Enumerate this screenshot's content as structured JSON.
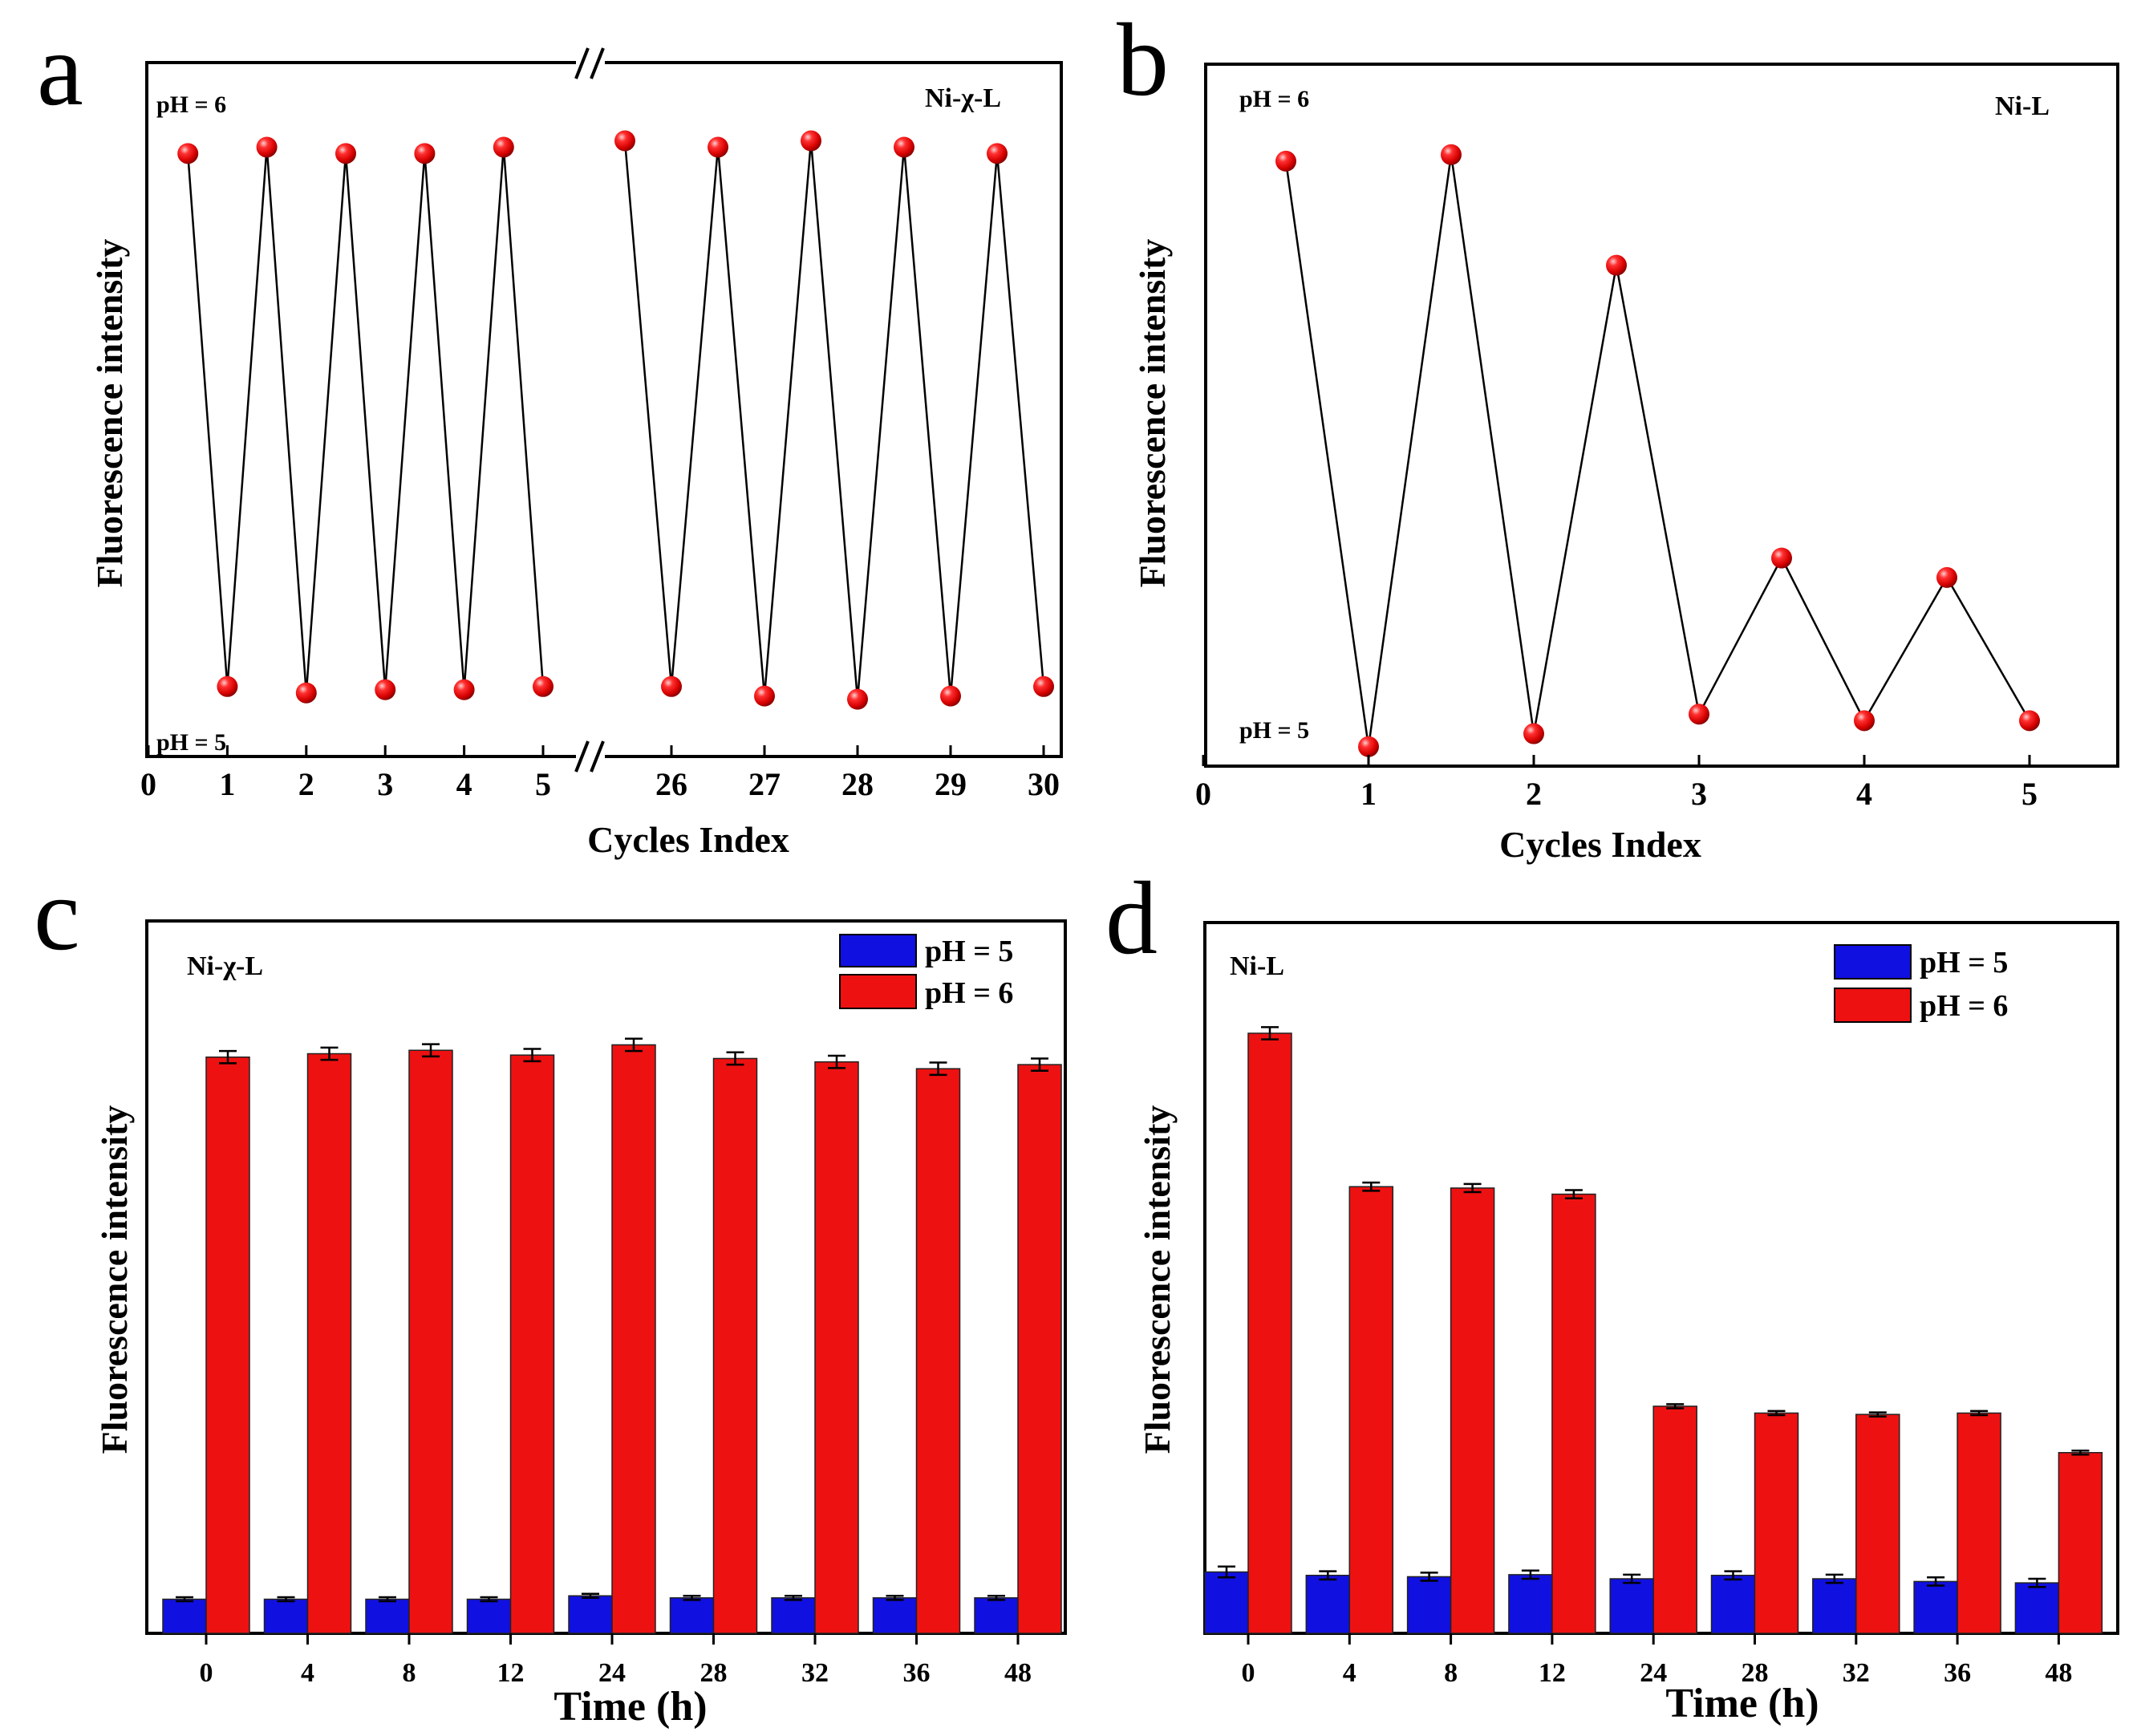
{
  "chart_data": [
    {
      "id": "a",
      "panel": "a",
      "type": "scatter",
      "title": "Ni-χ-L",
      "xlabel": "Cycles Index",
      "ylabel": "Fluorescence intensity",
      "top_label": "pH = 6",
      "bottom_label": "pH = 5",
      "axis_break": "//",
      "xlim": [
        0,
        30
      ],
      "ylim": [
        0,
        100
      ],
      "xticks": [
        {
          "value": 0,
          "label": "0"
        },
        {
          "value": 1,
          "label": "1"
        },
        {
          "value": 2,
          "label": "2"
        },
        {
          "value": 3,
          "label": "3"
        },
        {
          "value": 4,
          "label": "4"
        },
        {
          "value": 5,
          "label": "5"
        },
        {
          "value": 26,
          "label": "26"
        },
        {
          "value": 27,
          "label": "27"
        },
        {
          "value": 28,
          "label": "28"
        },
        {
          "value": 29,
          "label": "29"
        },
        {
          "value": 30,
          "label": "30"
        }
      ],
      "series": [
        {
          "name": "Fluorescence intensity",
          "x": [
            0.5,
            1,
            1.5,
            2,
            2.5,
            3,
            3.5,
            4,
            4.5,
            5,
            25.5,
            26,
            26.5,
            27,
            27.5,
            28,
            28.5,
            29,
            29.5,
            30
          ],
          "y": [
            93,
            9,
            94,
            8,
            93,
            8.5,
            93,
            8.5,
            94,
            9,
            95,
            9,
            94,
            7.5,
            95,
            7,
            94,
            7.5,
            93,
            9
          ]
        }
      ]
    },
    {
      "id": "b",
      "panel": "b",
      "type": "scatter",
      "title": "Ni-L",
      "xlabel": "Cycles Index",
      "ylabel": "Fluorescence intensity",
      "top_label": "pH = 6",
      "bottom_label": "pH = 5",
      "xlim": [
        0,
        5.5
      ],
      "ylim": [
        0,
        100
      ],
      "xticks": [
        {
          "value": 0,
          "label": "0"
        },
        {
          "value": 1,
          "label": "1"
        },
        {
          "value": 2,
          "label": "2"
        },
        {
          "value": 3,
          "label": "3"
        },
        {
          "value": 4,
          "label": "4"
        },
        {
          "value": 5,
          "label": "5"
        }
      ],
      "series": [
        {
          "name": "Fluorescence intensity",
          "x": [
            0.5,
            1,
            1.5,
            2,
            2.5,
            3,
            3.5,
            4,
            4.5,
            5
          ],
          "y": [
            92,
            2,
            93,
            4,
            76,
            7,
            31,
            6,
            28,
            6
          ]
        }
      ]
    },
    {
      "id": "c",
      "panel": "c",
      "type": "bar",
      "title": "Ni-χ-L",
      "xlabel": "Time (h)",
      "ylabel": "Fluorescence intensity",
      "ylim": [
        0,
        100
      ],
      "categories": [
        "0",
        "4",
        "8",
        "12",
        "24",
        "28",
        "32",
        "36",
        "48"
      ],
      "legend": "top-right",
      "series": [
        {
          "name": "pH = 5",
          "color": "#1010e0",
          "values": [
            5,
            5,
            5,
            5,
            5.5,
            5.2,
            5.2,
            5.2,
            5.2
          ],
          "errors": [
            0.3,
            0.3,
            0.3,
            0.3,
            0.3,
            0.3,
            0.3,
            0.3,
            0.3
          ]
        },
        {
          "name": "pH = 6",
          "color": "#ee1111",
          "values": [
            84.5,
            85,
            85.5,
            84.8,
            86.3,
            84.3,
            83.8,
            82.8,
            83.4
          ],
          "errors": [
            0.9,
            0.9,
            0.9,
            0.9,
            0.9,
            0.9,
            0.9,
            0.9,
            0.9
          ]
        }
      ]
    },
    {
      "id": "d",
      "panel": "d",
      "type": "bar",
      "title": "Ni-L",
      "xlabel": "Time (h)",
      "ylabel": "Fluorescence intensity",
      "ylim": [
        0,
        100
      ],
      "categories": [
        "0",
        "4",
        "8",
        "12",
        "24",
        "28",
        "32",
        "36",
        "48"
      ],
      "legend": "top-right",
      "series": [
        {
          "name": "pH = 5",
          "color": "#1010e0",
          "values": [
            9,
            8.5,
            8.3,
            8.6,
            8,
            8.5,
            8,
            7.6,
            7.4
          ],
          "errors": [
            0.8,
            0.6,
            0.6,
            0.6,
            0.6,
            0.6,
            0.6,
            0.6,
            0.6
          ]
        },
        {
          "name": "pH = 6",
          "color": "#ee1111",
          "values": [
            88,
            65.5,
            65.3,
            64.4,
            33.3,
            32.3,
            32.1,
            32.3,
            26.5
          ],
          "errors": [
            0.9,
            0.6,
            0.6,
            0.6,
            0.3,
            0.3,
            0.3,
            0.3,
            0.3
          ]
        }
      ]
    }
  ]
}
